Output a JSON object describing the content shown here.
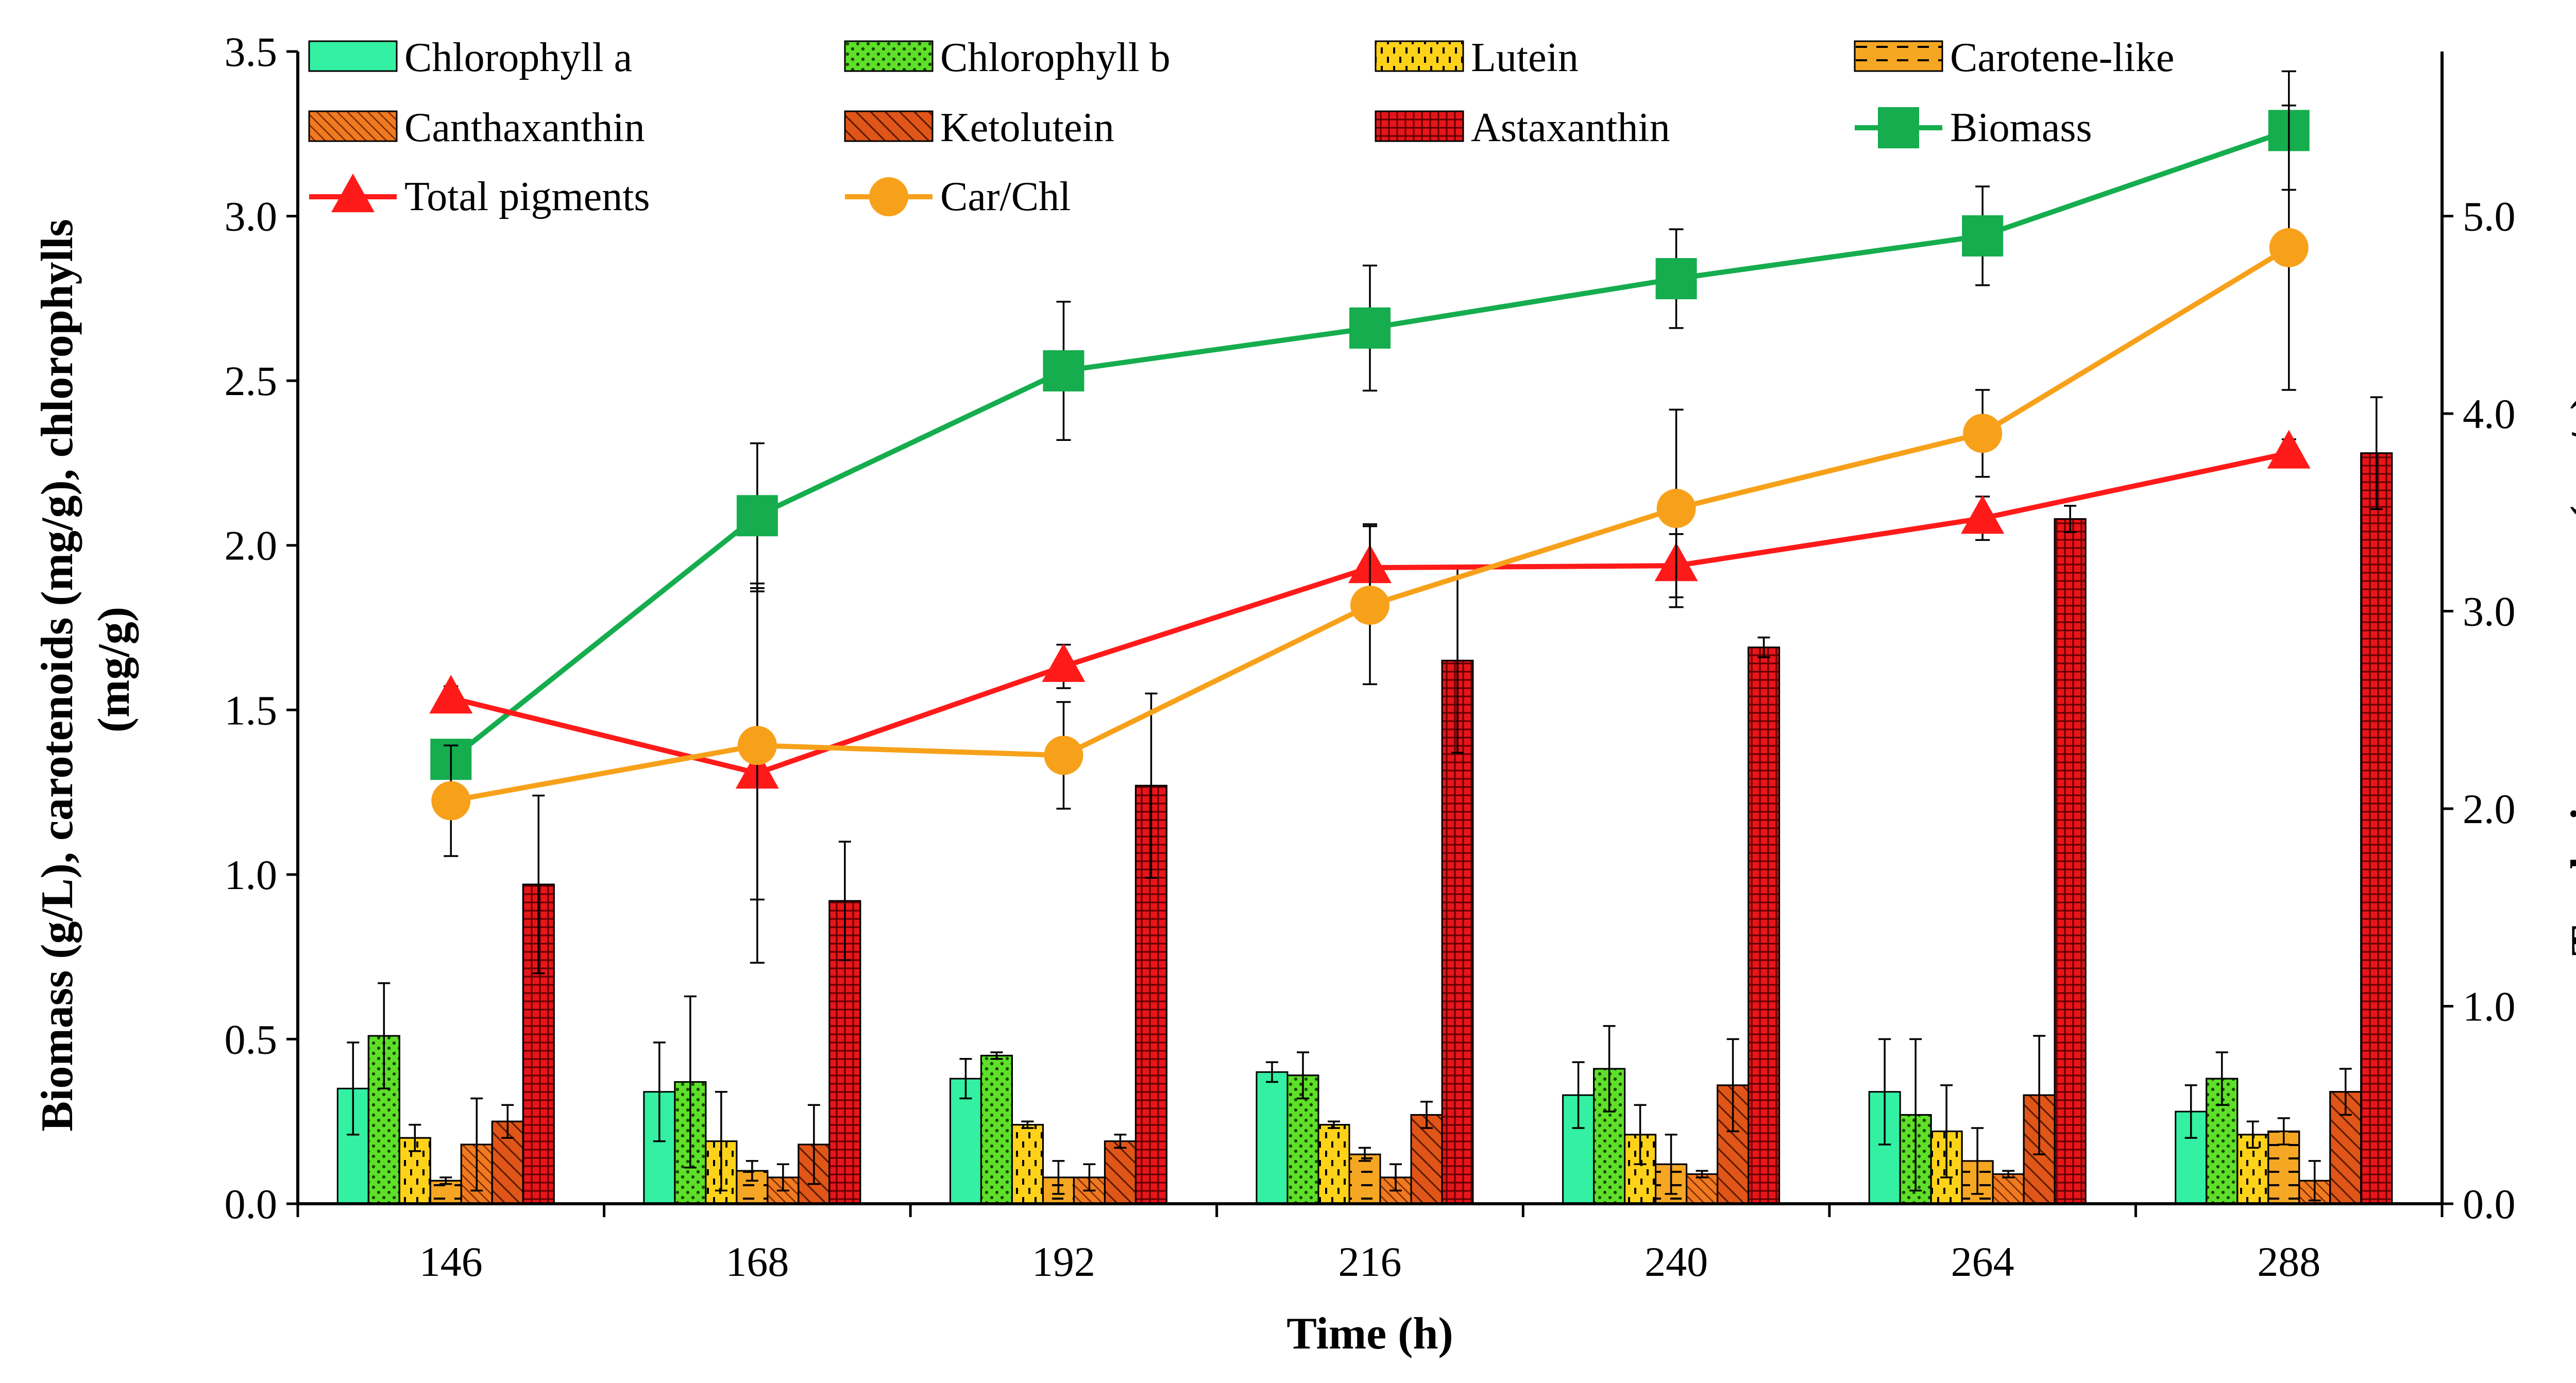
{
  "chart_data": {
    "type": "bar",
    "xlabel": "Time (h)",
    "ylabel_left": "Biomass (g/L), carotenoids (mg/g), chlorophylls (mg/g)",
    "ylabel_right": "Total pigment content (mg/g) Car/Chl (wt/wt)",
    "ylim_left": [
      0,
      3.5
    ],
    "ylim_right": [
      0,
      5.833
    ],
    "left_ticks": [
      "0.0",
      "0.5",
      "1.0",
      "1.5",
      "2.0",
      "2.5",
      "3.0",
      "3.5"
    ],
    "right_ticks": [
      "0.0",
      "1.0",
      "2.0",
      "3.0",
      "4.0",
      "5.0"
    ],
    "categories": [
      "146",
      "168",
      "192",
      "216",
      "240",
      "264",
      "288"
    ],
    "bar_series": [
      {
        "name": "Chlorophyll a",
        "color": "#33f0a2",
        "pattern": "solid",
        "values": [
          0.35,
          0.34,
          0.38,
          0.4,
          0.33,
          0.34,
          0.28
        ],
        "errors": [
          0.14,
          0.15,
          0.06,
          0.03,
          0.1,
          0.16,
          0.08
        ]
      },
      {
        "name": "Chlorophyll b",
        "color": "#5ee02a",
        "pattern": "dots",
        "values": [
          0.51,
          0.37,
          0.45,
          0.39,
          0.41,
          0.27,
          0.38
        ],
        "errors": [
          0.16,
          0.26,
          0.01,
          0.07,
          0.13,
          0.23,
          0.08
        ]
      },
      {
        "name": "Lutein",
        "color": "#ffd21a",
        "pattern": "dashes",
        "values": [
          0.2,
          0.19,
          0.24,
          0.24,
          0.21,
          0.22,
          0.21
        ],
        "errors": [
          0.04,
          0.15,
          0.01,
          0.01,
          0.09,
          0.14,
          0.04
        ]
      },
      {
        "name": "Carotene-like",
        "color": "#f5a623",
        "pattern": "hdash",
        "values": [
          0.07,
          0.1,
          0.08,
          0.15,
          0.12,
          0.13,
          0.22
        ],
        "errors": [
          0.01,
          0.03,
          0.05,
          0.02,
          0.09,
          0.1,
          0.04
        ]
      },
      {
        "name": "Canthaxanthin",
        "color": "#f07a20",
        "pattern": "fine-diag",
        "values": [
          0.18,
          0.08,
          0.08,
          0.08,
          0.09,
          0.09,
          0.07
        ],
        "errors": [
          0.14,
          0.04,
          0.04,
          0.04,
          0.01,
          0.01,
          0.06
        ]
      },
      {
        "name": "Ketolutein",
        "color": "#e05518",
        "pattern": "diag",
        "values": [
          0.25,
          0.18,
          0.19,
          0.27,
          0.36,
          0.33,
          0.34
        ],
        "errors": [
          0.05,
          0.12,
          0.02,
          0.04,
          0.14,
          0.18,
          0.07
        ]
      },
      {
        "name": "Astaxanthin",
        "color": "#e8151a",
        "pattern": "grid",
        "values": [
          0.97,
          0.92,
          1.27,
          1.65,
          1.69,
          2.08,
          2.28
        ],
        "errors": [
          0.27,
          0.18,
          0.28,
          0.28,
          0.03,
          0.04,
          0.17
        ]
      }
    ],
    "line_series": [
      {
        "name": "Biomass",
        "axis": "left",
        "color": "#15ad4e",
        "marker": "square",
        "values": [
          1.35,
          2.09,
          2.53,
          2.66,
          2.81,
          2.94,
          3.26
        ],
        "errors": [
          0.05,
          0.22,
          0.21,
          0.19,
          0.15,
          0.15,
          0.18
        ]
      },
      {
        "name": "Total pigments",
        "axis": "right",
        "color": "#ff1a1a",
        "marker": "triangle",
        "values": [
          2.56,
          2.18,
          2.72,
          3.22,
          3.23,
          3.47,
          3.8
        ],
        "errors": [
          0.06,
          0.96,
          0.11,
          0.22,
          0.16,
          0.11,
          0.07
        ]
      },
      {
        "name": "Car/Chl",
        "axis": "right",
        "color": "#f7a11a",
        "marker": "circle",
        "values": [
          2.04,
          2.32,
          2.27,
          3.03,
          3.52,
          3.9,
          4.84
        ],
        "errors": [
          0.28,
          0.78,
          0.27,
          0.4,
          0.5,
          0.22,
          0.72
        ]
      }
    ],
    "legend": {
      "position": "top",
      "items": [
        "Chlorophyll a",
        "Chlorophyll b",
        "Lutein",
        "Carotene-like",
        "Canthaxanthin",
        "Ketolutein",
        "Astaxanthin",
        "Biomass",
        "Total pigments",
        "Car/Chl"
      ]
    }
  }
}
